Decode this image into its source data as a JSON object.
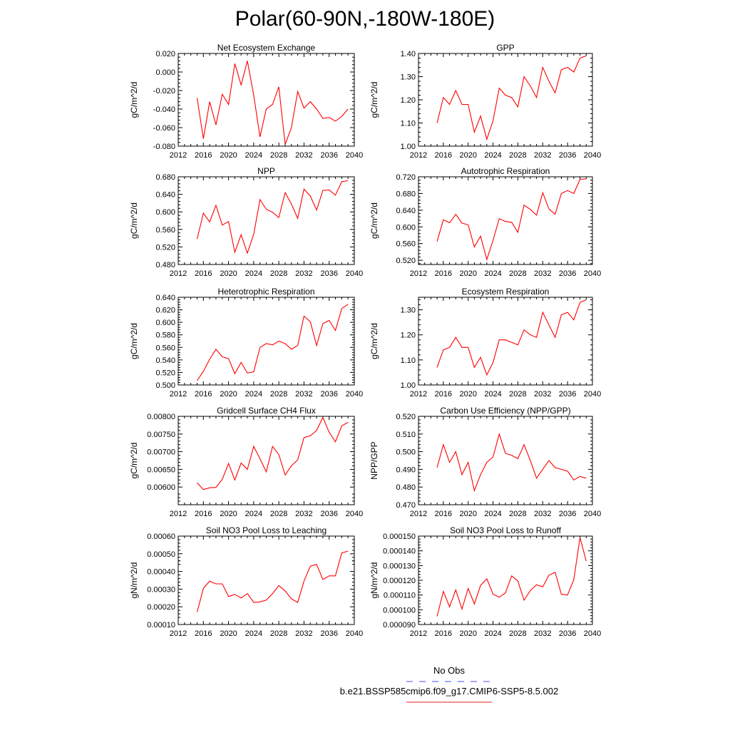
{
  "figure_title": "Polar(60-90N,-180W-180E)",
  "legend": {
    "entries": [
      {
        "label": "No Obs",
        "color": "#4a4aff",
        "style": "dashed"
      },
      {
        "label": "b.e21.BSSP585cmip6.f09_g17.CMIP6-SSP5-8.5.002",
        "color": "#e02020",
        "style": "solid"
      }
    ]
  },
  "colors": {
    "series": "#ff0000",
    "axis": "#000000"
  },
  "chart_data": [
    {
      "type": "line",
      "title": "Net Ecosystem Exchange",
      "ylabel": "gC/m^2/d",
      "xlim": [
        2012,
        2040
      ],
      "ylim": [
        -0.08,
        0.02
      ],
      "xticks": [
        "2012",
        "2016",
        "2020",
        "2024",
        "2028",
        "2032",
        "2036",
        "2040"
      ],
      "yticks": [
        "-0.080",
        "-0.060",
        "-0.040",
        "-0.020",
        "0.000",
        "0.020"
      ],
      "x": [
        2015,
        2016,
        2017,
        2018,
        2019,
        2020,
        2021,
        2022,
        2023,
        2024,
        2025,
        2026,
        2027,
        2028,
        2029,
        2030,
        2031,
        2032,
        2033,
        2034,
        2035,
        2036,
        2037,
        2038,
        2039
      ],
      "series": [
        {
          "values": [
            -0.028,
            -0.072,
            -0.032,
            -0.057,
            -0.024,
            -0.035,
            0.009,
            -0.014,
            0.012,
            -0.025,
            -0.07,
            -0.04,
            -0.035,
            -0.016,
            -0.078,
            -0.06,
            -0.021,
            -0.039,
            -0.032,
            -0.04,
            -0.05,
            -0.049,
            -0.053,
            -0.048,
            -0.04
          ]
        }
      ]
    },
    {
      "type": "line",
      "title": "GPP",
      "ylabel": "gC/m^2/d",
      "xlim": [
        2012,
        2040
      ],
      "ylim": [
        1.0,
        1.4
      ],
      "xticks": [
        "2012",
        "2016",
        "2020",
        "2024",
        "2028",
        "2032",
        "2036",
        "2040"
      ],
      "yticks": [
        "1.00",
        "1.10",
        "1.20",
        "1.30",
        "1.40"
      ],
      "x": [
        2015,
        2016,
        2017,
        2018,
        2019,
        2020,
        2021,
        2022,
        2023,
        2024,
        2025,
        2026,
        2027,
        2028,
        2029,
        2030,
        2031,
        2032,
        2033,
        2034,
        2035,
        2036,
        2037,
        2038,
        2039
      ],
      "series": [
        {
          "values": [
            1.1,
            1.21,
            1.18,
            1.24,
            1.18,
            1.18,
            1.06,
            1.13,
            1.03,
            1.11,
            1.25,
            1.22,
            1.21,
            1.17,
            1.3,
            1.26,
            1.21,
            1.34,
            1.28,
            1.23,
            1.33,
            1.34,
            1.32,
            1.38,
            1.39
          ]
        }
      ]
    },
    {
      "type": "line",
      "title": "NPP",
      "ylabel": "gC/m^2/d",
      "xlim": [
        2012,
        2040
      ],
      "ylim": [
        0.48,
        0.68
      ],
      "xticks": [
        "2012",
        "2016",
        "2020",
        "2024",
        "2028",
        "2032",
        "2036",
        "2040"
      ],
      "yticks": [
        "0.480",
        "0.520",
        "0.560",
        "0.600",
        "0.640",
        "0.680"
      ],
      "x": [
        2015,
        2016,
        2017,
        2018,
        2019,
        2020,
        2021,
        2022,
        2023,
        2024,
        2025,
        2026,
        2027,
        2028,
        2029,
        2030,
        2031,
        2032,
        2033,
        2034,
        2035,
        2036,
        2037,
        2038,
        2039
      ],
      "series": [
        {
          "values": [
            0.538,
            0.597,
            0.577,
            0.615,
            0.57,
            0.578,
            0.508,
            0.548,
            0.506,
            0.549,
            0.628,
            0.606,
            0.599,
            0.587,
            0.644,
            0.618,
            0.585,
            0.652,
            0.636,
            0.604,
            0.649,
            0.65,
            0.638,
            0.669,
            0.671
          ]
        }
      ]
    },
    {
      "type": "line",
      "title": "Autotrophic Respiration",
      "ylabel": "gC/m^2/d",
      "xlim": [
        2012,
        2040
      ],
      "ylim": [
        0.51,
        0.72
      ],
      "xticks": [
        "2012",
        "2016",
        "2020",
        "2024",
        "2028",
        "2032",
        "2036",
        "2040"
      ],
      "yticks": [
        "0.520",
        "0.560",
        "0.600",
        "0.640",
        "0.680",
        "0.720"
      ],
      "x": [
        2015,
        2016,
        2017,
        2018,
        2019,
        2020,
        2021,
        2022,
        2023,
        2024,
        2025,
        2026,
        2027,
        2028,
        2029,
        2030,
        2031,
        2032,
        2033,
        2034,
        2035,
        2036,
        2037,
        2038,
        2039
      ],
      "series": [
        {
          "values": [
            0.565,
            0.617,
            0.61,
            0.63,
            0.609,
            0.605,
            0.552,
            0.578,
            0.522,
            0.568,
            0.62,
            0.613,
            0.611,
            0.587,
            0.652,
            0.642,
            0.628,
            0.682,
            0.643,
            0.63,
            0.68,
            0.687,
            0.68,
            0.714,
            0.715
          ]
        }
      ]
    },
    {
      "type": "line",
      "title": "Heterotrophic Respiration",
      "ylabel": "gC/m^2/d",
      "xlim": [
        2012,
        2040
      ],
      "ylim": [
        0.5,
        0.64
      ],
      "xticks": [
        "2012",
        "2016",
        "2020",
        "2024",
        "2028",
        "2032",
        "2036",
        "2040"
      ],
      "yticks": [
        "0.500",
        "0.520",
        "0.540",
        "0.560",
        "0.580",
        "0.600",
        "0.620",
        "0.640"
      ],
      "x": [
        2015,
        2016,
        2017,
        2018,
        2019,
        2020,
        2021,
        2022,
        2023,
        2024,
        2025,
        2026,
        2027,
        2028,
        2029,
        2030,
        2031,
        2032,
        2033,
        2034,
        2035,
        2036,
        2037,
        2038,
        2039
      ],
      "series": [
        {
          "values": [
            0.507,
            0.522,
            0.541,
            0.557,
            0.545,
            0.542,
            0.518,
            0.536,
            0.519,
            0.521,
            0.56,
            0.566,
            0.564,
            0.57,
            0.566,
            0.557,
            0.563,
            0.61,
            0.601,
            0.563,
            0.598,
            0.603,
            0.587,
            0.622,
            0.629
          ]
        }
      ]
    },
    {
      "type": "line",
      "title": "Ecosystem Respiration",
      "ylabel": "gC/m^2/d",
      "xlim": [
        2012,
        2040
      ],
      "ylim": [
        1.0,
        1.35
      ],
      "xticks": [
        "2012",
        "2016",
        "2020",
        "2024",
        "2028",
        "2032",
        "2036",
        "2040"
      ],
      "yticks": [
        "1.00",
        "1.10",
        "1.20",
        "1.30"
      ],
      "x": [
        2015,
        2016,
        2017,
        2018,
        2019,
        2020,
        2021,
        2022,
        2023,
        2024,
        2025,
        2026,
        2027,
        2028,
        2029,
        2030,
        2031,
        2032,
        2033,
        2034,
        2035,
        2036,
        2037,
        2038,
        2039
      ],
      "series": [
        {
          "values": [
            1.07,
            1.14,
            1.15,
            1.19,
            1.15,
            1.15,
            1.07,
            1.11,
            1.04,
            1.09,
            1.18,
            1.18,
            1.17,
            1.16,
            1.22,
            1.2,
            1.19,
            1.29,
            1.24,
            1.19,
            1.28,
            1.29,
            1.26,
            1.33,
            1.34
          ]
        }
      ]
    },
    {
      "type": "line",
      "title": "Gridcell Surface CH4 Flux",
      "ylabel": "gC/m^2/d",
      "xlim": [
        2012,
        2040
      ],
      "ylim": [
        0.0055,
        0.008
      ],
      "xticks": [
        "2012",
        "2016",
        "2020",
        "2024",
        "2028",
        "2032",
        "2036",
        "2040"
      ],
      "yticks": [
        "0.00600",
        "0.00650",
        "0.00700",
        "0.00750",
        "0.00800"
      ],
      "x": [
        2015,
        2016,
        2017,
        2018,
        2019,
        2020,
        2021,
        2022,
        2023,
        2024,
        2025,
        2026,
        2027,
        2028,
        2029,
        2030,
        2031,
        2032,
        2033,
        2034,
        2035,
        2036,
        2037,
        2038,
        2039
      ],
      "series": [
        {
          "values": [
            0.00612,
            0.00593,
            0.00598,
            0.00599,
            0.00622,
            0.00667,
            0.0062,
            0.00668,
            0.0065,
            0.00715,
            0.0068,
            0.00643,
            0.00715,
            0.00692,
            0.00634,
            0.0066,
            0.00677,
            0.0074,
            0.00745,
            0.0076,
            0.00797,
            0.00755,
            0.00728,
            0.00773,
            0.00783
          ]
        }
      ]
    },
    {
      "type": "line",
      "title": "Carbon Use Efficiency (NPP/GPP)",
      "ylabel": "NPP/GPP",
      "xlim": [
        2012,
        2040
      ],
      "ylim": [
        0.47,
        0.52
      ],
      "xticks": [
        "2012",
        "2016",
        "2020",
        "2024",
        "2028",
        "2032",
        "2036",
        "2040"
      ],
      "yticks": [
        "0.470",
        "0.480",
        "0.490",
        "0.500",
        "0.510",
        "0.520"
      ],
      "x": [
        2015,
        2016,
        2017,
        2018,
        2019,
        2020,
        2021,
        2022,
        2023,
        2024,
        2025,
        2026,
        2027,
        2028,
        2029,
        2030,
        2031,
        2032,
        2033,
        2034,
        2035,
        2036,
        2037,
        2038,
        2039
      ],
      "series": [
        {
          "values": [
            0.491,
            0.504,
            0.494,
            0.5,
            0.487,
            0.494,
            0.478,
            0.487,
            0.494,
            0.497,
            0.51,
            0.499,
            0.498,
            0.496,
            0.504,
            0.495,
            0.485,
            0.49,
            0.495,
            0.491,
            0.49,
            0.489,
            0.484,
            0.486,
            0.485
          ]
        }
      ]
    },
    {
      "type": "line",
      "title": "Soil NO3 Pool Loss to Leaching",
      "ylabel": "gN/m^2/d",
      "xlim": [
        2012,
        2040
      ],
      "ylim": [
        0.0001,
        0.0006
      ],
      "xticks": [
        "2012",
        "2016",
        "2020",
        "2024",
        "2028",
        "2032",
        "2036",
        "2040"
      ],
      "yticks": [
        "0.00010",
        "0.00020",
        "0.00030",
        "0.00040",
        "0.00050",
        "0.00060"
      ],
      "x": [
        2015,
        2016,
        2017,
        2018,
        2019,
        2020,
        2021,
        2022,
        2023,
        2024,
        2025,
        2026,
        2027,
        2028,
        2029,
        2030,
        2031,
        2032,
        2033,
        2034,
        2035,
        2036,
        2037,
        2038,
        2039
      ],
      "series": [
        {
          "values": [
            0.00017,
            0.000305,
            0.000345,
            0.00033,
            0.00033,
            0.000258,
            0.00027,
            0.00025,
            0.000275,
            0.000225,
            0.000228,
            0.000238,
            0.000275,
            0.00032,
            0.00029,
            0.000245,
            0.000225,
            0.000345,
            0.00043,
            0.00044,
            0.000355,
            0.000375,
            0.000375,
            0.000505,
            0.000515
          ]
        }
      ]
    },
    {
      "type": "line",
      "title": "Soil NO3 Pool Loss to Runoff",
      "ylabel": "gN/m^2/d",
      "xlim": [
        2012,
        2040
      ],
      "ylim": [
        9e-05,
        0.00015
      ],
      "xticks": [
        "2012",
        "2016",
        "2020",
        "2024",
        "2028",
        "2032",
        "2036",
        "2040"
      ],
      "yticks": [
        "0.000090",
        "0.000100",
        "0.000110",
        "0.000120",
        "0.000130",
        "0.000140",
        "0.000150"
      ],
      "x": [
        2015,
        2016,
        2017,
        2018,
        2019,
        2020,
        2021,
        2022,
        2023,
        2024,
        2025,
        2026,
        2027,
        2028,
        2029,
        2030,
        2031,
        2032,
        2033,
        2034,
        2035,
        2036,
        2037,
        2038,
        2039
      ],
      "series": [
        {
          "values": [
            9.55e-05,
            0.0001125,
            0.000102,
            0.0001135,
            0.0001005,
            0.0001145,
            0.000104,
            0.0001165,
            0.000121,
            0.0001105,
            0.0001085,
            0.0001115,
            0.000123,
            0.0001195,
            0.0001065,
            0.000113,
            0.000117,
            0.0001155,
            0.0001235,
            0.0001255,
            0.0001105,
            0.00011,
            0.0001205,
            0.000149,
            0.000133
          ]
        }
      ]
    }
  ]
}
